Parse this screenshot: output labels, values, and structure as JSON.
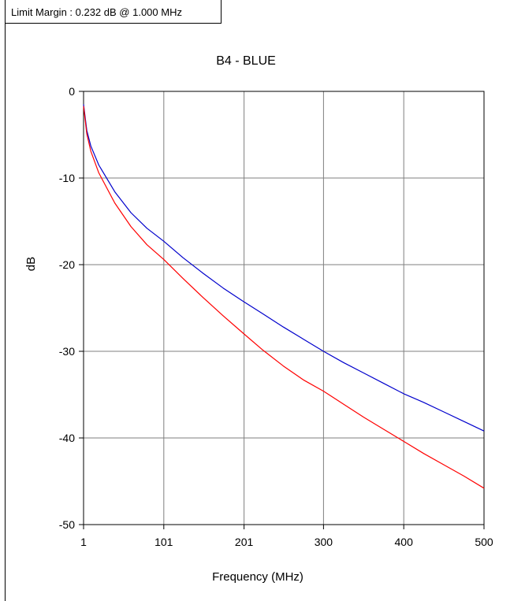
{
  "limit_margin_text": "Limit Margin : 0.232 dB @ 1.000 MHz",
  "chart_data": {
    "type": "line",
    "title": "B4 - BLUE",
    "xlabel": "Frequency (MHz)",
    "ylabel": "dB",
    "xlim": [
      1,
      500
    ],
    "ylim": [
      -50,
      0
    ],
    "x_ticks": [
      1,
      101,
      201,
      300,
      400,
      500
    ],
    "y_ticks": [
      0,
      -10,
      -20,
      -30,
      -40,
      -50
    ],
    "grid": true,
    "series": [
      {
        "color": "#0000cc",
        "x": [
          1,
          5,
          10,
          20,
          40,
          60,
          80,
          101,
          125,
          150,
          175,
          201,
          225,
          250,
          275,
          300,
          325,
          350,
          375,
          400,
          425,
          450,
          475,
          500
        ],
        "y": [
          -1.5,
          -4.5,
          -6.3,
          -8.5,
          -11.6,
          -14.0,
          -15.8,
          -17.3,
          -19.2,
          -21.0,
          -22.7,
          -24.3,
          -25.7,
          -27.2,
          -28.6,
          -30.0,
          -31.3,
          -32.5,
          -33.7,
          -34.9,
          -35.9,
          -37.0,
          -38.1,
          -39.2
        ]
      },
      {
        "color": "#ff0000",
        "x": [
          1,
          5,
          10,
          20,
          40,
          60,
          80,
          101,
          125,
          150,
          175,
          201,
          225,
          250,
          275,
          300,
          325,
          350,
          375,
          400,
          425,
          450,
          475,
          500
        ],
        "y": [
          -1.7,
          -4.9,
          -6.9,
          -9.4,
          -12.9,
          -15.6,
          -17.7,
          -19.4,
          -21.6,
          -23.8,
          -25.9,
          -28.0,
          -29.9,
          -31.7,
          -33.3,
          -34.6,
          -36.1,
          -37.6,
          -39.0,
          -40.4,
          -41.8,
          -43.1,
          -44.4,
          -45.8
        ]
      }
    ]
  }
}
